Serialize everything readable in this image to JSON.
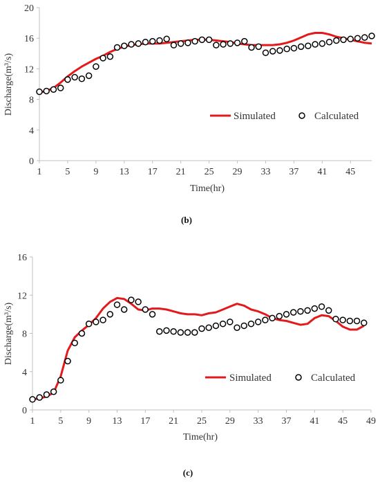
{
  "chart_data": [
    {
      "panel": "b",
      "panel_label": "(b)",
      "type": "line",
      "xlabel": "Time(hr)",
      "ylabel": "Discharge(m³/s)",
      "ylim": [
        0,
        20
      ],
      "xlim": [
        1,
        48
      ],
      "y_ticks": [
        0,
        4,
        8,
        12,
        16,
        20
      ],
      "x_ticks": [
        1,
        5,
        9,
        13,
        17,
        21,
        25,
        29,
        33,
        37,
        41,
        45
      ],
      "legend_placement": "right",
      "grid": false,
      "colors": {
        "Simulated": "#e31a1c",
        "Calculated": "#000000"
      },
      "series": [
        {
          "name": "Simulated",
          "style": "line",
          "x": [
            1,
            2,
            3,
            4,
            5,
            6,
            7,
            8,
            9,
            10,
            11,
            12,
            13,
            14,
            15,
            16,
            17,
            18,
            19,
            20,
            21,
            22,
            23,
            24,
            25,
            26,
            27,
            28,
            29,
            30,
            31,
            32,
            33,
            34,
            35,
            36,
            37,
            38,
            39,
            40,
            41,
            42,
            43,
            44,
            45,
            46,
            47,
            48
          ],
          "y": [
            8.9,
            9.1,
            9.5,
            10.2,
            11.0,
            11.7,
            12.3,
            12.8,
            13.3,
            13.7,
            14.2,
            14.6,
            14.9,
            15.1,
            15.2,
            15.3,
            15.3,
            15.3,
            15.4,
            15.5,
            15.6,
            15.7,
            15.8,
            15.8,
            15.8,
            15.7,
            15.6,
            15.5,
            15.3,
            15.2,
            15.1,
            15.1,
            15.1,
            15.1,
            15.2,
            15.4,
            15.7,
            16.1,
            16.5,
            16.7,
            16.7,
            16.5,
            16.2,
            16.0,
            15.8,
            15.6,
            15.4,
            15.3
          ]
        },
        {
          "name": "Calculated",
          "style": "marker",
          "x": [
            1,
            2,
            3,
            4,
            5,
            6,
            7,
            8,
            9,
            10,
            11,
            12,
            13,
            14,
            15,
            16,
            17,
            18,
            19,
            20,
            21,
            22,
            23,
            24,
            25,
            26,
            27,
            28,
            29,
            30,
            31,
            32,
            33,
            34,
            35,
            36,
            37,
            38,
            39,
            40,
            41,
            42,
            43,
            44,
            45,
            46,
            47,
            48
          ],
          "y": [
            9.0,
            9.1,
            9.3,
            9.5,
            10.6,
            10.9,
            10.7,
            11.1,
            12.3,
            13.4,
            13.6,
            14.8,
            15.0,
            15.2,
            15.3,
            15.5,
            15.6,
            15.7,
            15.9,
            15.1,
            15.3,
            15.4,
            15.6,
            15.8,
            15.8,
            15.1,
            15.2,
            15.3,
            15.4,
            15.6,
            14.8,
            14.9,
            14.1,
            14.3,
            14.4,
            14.6,
            14.7,
            14.9,
            15.0,
            15.2,
            15.3,
            15.5,
            15.7,
            15.8,
            15.9,
            16.0,
            16.1,
            16.3
          ]
        }
      ]
    },
    {
      "panel": "c",
      "panel_label": "(c)",
      "type": "line",
      "xlabel": "Time(hr)",
      "ylabel": "Discharge(m³/s)",
      "ylim": [
        0,
        16
      ],
      "xlim": [
        1,
        49
      ],
      "y_ticks": [
        0,
        4,
        8,
        12,
        16
      ],
      "x_ticks": [
        1,
        5,
        9,
        13,
        17,
        21,
        25,
        29,
        33,
        37,
        41,
        45,
        49
      ],
      "legend_placement": "bottom-right",
      "grid": false,
      "colors": {
        "Simulated": "#e31a1c",
        "Calculated": "#000000"
      },
      "series": [
        {
          "name": "Simulated",
          "style": "line",
          "x": [
            1,
            2,
            3,
            4,
            5,
            6,
            7,
            8,
            9,
            10,
            11,
            12,
            13,
            14,
            15,
            16,
            17,
            18,
            19,
            20,
            21,
            22,
            23,
            24,
            25,
            26,
            27,
            28,
            29,
            30,
            31,
            32,
            33,
            34,
            35,
            36,
            37,
            38,
            39,
            40,
            41,
            42,
            43,
            44,
            45,
            46,
            47,
            48
          ],
          "y": [
            1.1,
            1.2,
            1.4,
            1.8,
            3.5,
            6.2,
            7.6,
            8.3,
            8.9,
            9.6,
            10.6,
            11.3,
            11.7,
            11.6,
            11.1,
            10.5,
            10.4,
            10.6,
            10.6,
            10.5,
            10.3,
            10.1,
            10.0,
            10.0,
            9.9,
            10.1,
            10.2,
            10.5,
            10.8,
            11.1,
            10.9,
            10.5,
            10.3,
            10.0,
            9.6,
            9.4,
            9.3,
            9.1,
            8.9,
            9.0,
            9.6,
            9.9,
            9.8,
            9.3,
            8.7,
            8.4,
            8.4,
            8.8
          ]
        },
        {
          "name": "Calculated",
          "style": "marker",
          "x": [
            1,
            2,
            3,
            4,
            5,
            6,
            7,
            8,
            9,
            10,
            11,
            12,
            13,
            14,
            15,
            16,
            17,
            18,
            19,
            20,
            21,
            22,
            23,
            24,
            25,
            26,
            27,
            28,
            29,
            30,
            31,
            32,
            33,
            34,
            35,
            36,
            37,
            38,
            39,
            40,
            41,
            42,
            43,
            44,
            45,
            46,
            47,
            48
          ],
          "y": [
            1.1,
            1.3,
            1.6,
            1.9,
            3.1,
            5.1,
            7.0,
            8.0,
            9.0,
            9.2,
            9.4,
            10.0,
            11.0,
            10.5,
            11.5,
            11.3,
            10.5,
            10.0,
            8.2,
            8.3,
            8.2,
            8.1,
            8.1,
            8.1,
            8.5,
            8.6,
            8.8,
            9.0,
            9.2,
            8.6,
            8.8,
            9.0,
            9.2,
            9.4,
            9.6,
            9.8,
            10.0,
            10.2,
            10.3,
            10.4,
            10.6,
            10.8,
            10.4,
            9.5,
            9.4,
            9.3,
            9.3,
            9.1
          ]
        }
      ]
    }
  ]
}
